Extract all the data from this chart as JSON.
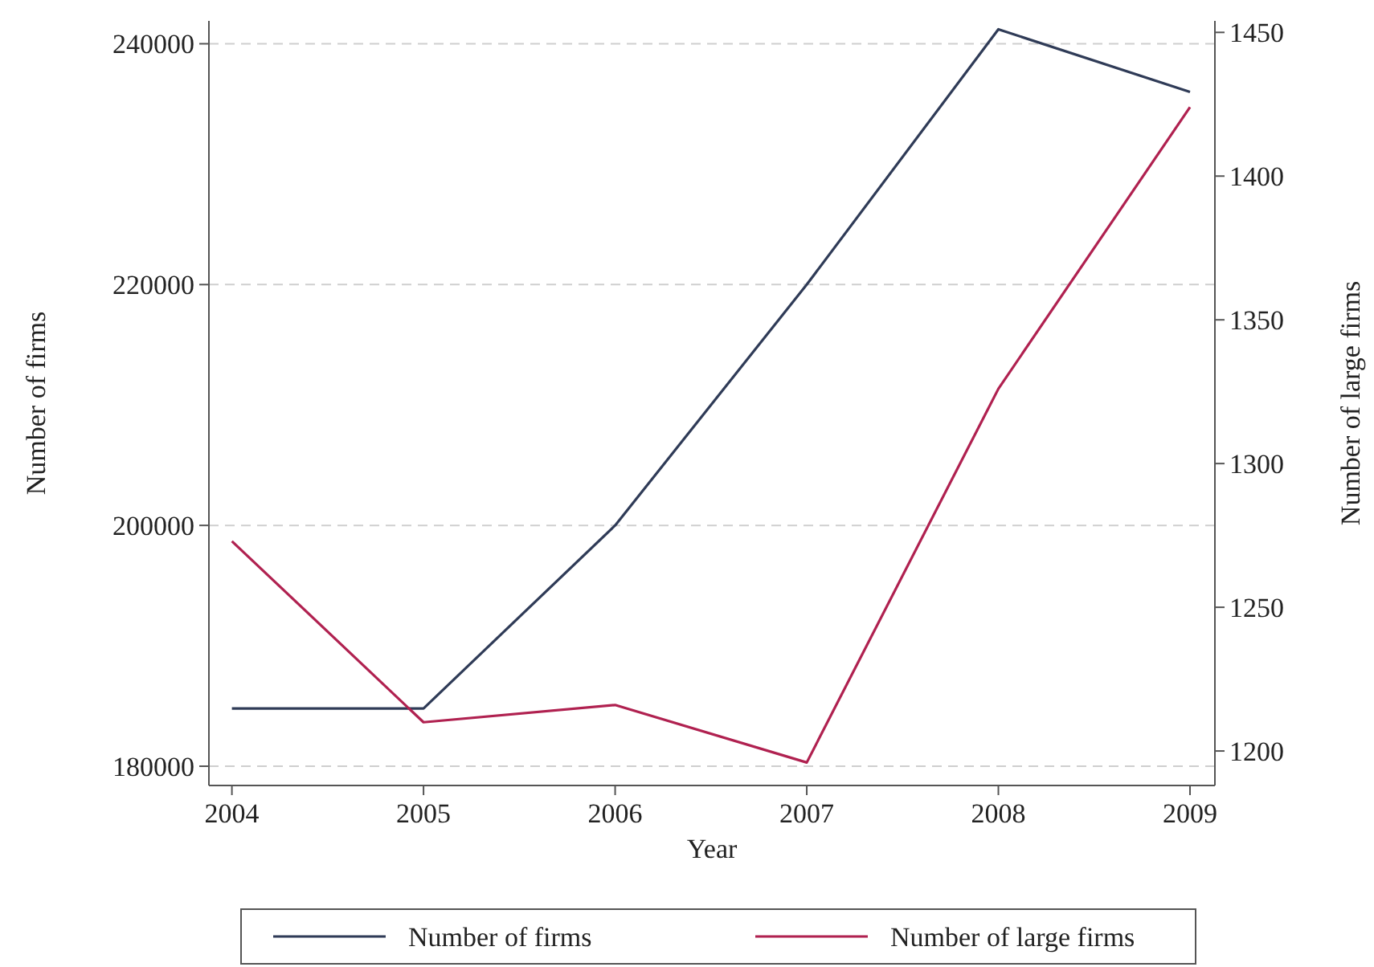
{
  "chart_data": {
    "type": "line",
    "xlabel": "Year",
    "ylabel": "Number of firms",
    "y2label": "Number of large firms",
    "x": [
      2004,
      2005,
      2006,
      2007,
      2008,
      2009
    ],
    "xlim": [
      2003.88,
      2009.13
    ],
    "xticks": [
      2004,
      2005,
      2006,
      2007,
      2008,
      2009
    ],
    "ylim": [
      178400,
      241900
    ],
    "yticks": [
      180000,
      200000,
      220000,
      240000
    ],
    "y2lim": [
      1188,
      1454
    ],
    "y2ticks": [
      1200,
      1250,
      1300,
      1350,
      1400,
      1450
    ],
    "grid": "y",
    "legend": "bottom",
    "line_style": "solid",
    "marker": "none",
    "series": [
      {
        "name": "Number of firms",
        "color": "#2f3b57",
        "values": [
          184800,
          184800,
          200000,
          220000,
          241200,
          236000
        ]
      },
      {
        "name": "Number of large firms",
        "color": "#b02150",
        "axis": "y2",
        "values": [
          1273,
          1210,
          1216,
          1196,
          1326,
          1424
        ]
      }
    ]
  }
}
